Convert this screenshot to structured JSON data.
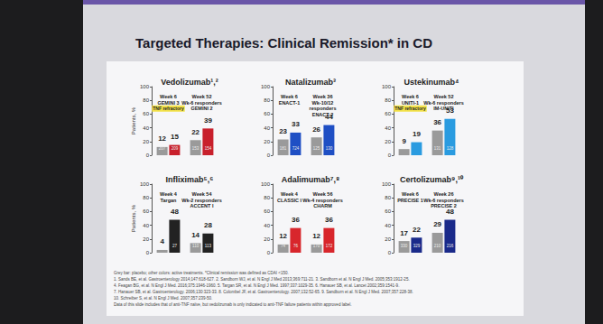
{
  "title": "Targeted Therapies: Clinical Remission* in CD",
  "footnote": [
    "Grey bar: placebo; other colors: active treatments. *Clinical remission was defined as CDAI <150.",
    "1. Sands BE, et al. Gastroenterology 2014;147:618-627. 2. Sandborn WJ, et al. N Engl J Med 2013;369:711-21. 3. Sandborn et al. N Engl J Med. 2005;353:1912-25.",
    "4. Feagan BG, et al. N Engl J Med. 2016;375:1946-1960. 5. Targan SR, et al. N Engl J Med. 1997;337:1029-35. 6. Hanauer SB, et al. Lancet 2002;359:1541-9.",
    "7. Hanauer SB, et al. Gastroenterology. 2006;130:323-33. 8. Colombel JF, et al. Gastroenterology. 2007;132:52-65. 9. Sandborn et al. N Engl J Med. 2007;357:228-38.",
    "10. Schreiber S, et al. N Engl J Med. 2007;357:239-50.",
    "Data of this slide includes that of anti-TNF naïve, but vedolizumab is only indicated to anti-TNF failure patients within approved label."
  ],
  "chart_data": [
    {
      "type": "bar",
      "title": "Vedolizumab¹,²",
      "y_label": "Patients, %",
      "categories": [
        "Week 6\nGEMINI 3",
        "Week 52\nWk-6 responders\nGEMINI 2"
      ],
      "annotations": [
        {
          "text": "TNF refractory",
          "category": "Week 6\nGEMINI 3"
        }
      ],
      "series": [
        {
          "color": "#9a9a9a",
          "values": [
            12,
            22
          ],
          "n": [
            207,
            153
          ]
        },
        {
          "color": "#c8202c",
          "values": [
            15,
            39
          ],
          "n": [
            209,
            154
          ]
        }
      ],
      "ylim": [
        0,
        100
      ],
      "yticks": [
        0,
        20,
        40,
        60,
        80,
        100
      ],
      "grid": false,
      "data_labels": true
    },
    {
      "type": "bar",
      "title": "Natalizumab³",
      "categories": [
        "Week 6\nENACT-1",
        "Week 36\nWk-10/12\nresponders\nENACT-2"
      ],
      "series": [
        {
          "color": "#9a9a9a",
          "values": [
            23,
            26
          ],
          "n": [
            181,
            125
          ]
        },
        {
          "color": "#1f4fc4",
          "values": [
            33,
            44
          ],
          "n": [
            724,
            130
          ]
        }
      ],
      "ylim": [
        0,
        100
      ],
      "yticks": [
        0,
        20,
        40,
        60,
        80,
        100
      ],
      "grid": false,
      "data_labels": true
    },
    {
      "type": "bar",
      "title": "Ustekinumab⁴",
      "categories": [
        "Week 6\nUNITI-1",
        "Week 52\nWk-6 responders\nIM-UNITI"
      ],
      "annotations": [
        {
          "text": "TNF refractory",
          "category": "Week 6\nUNITI-1"
        }
      ],
      "series": [
        {
          "color": "#9a9a9a",
          "values": [
            9,
            36
          ],
          "n": [
            null,
            131
          ]
        },
        {
          "color": "#2a9be0",
          "values": [
            19,
            53
          ],
          "n": [
            null,
            128
          ]
        }
      ],
      "ylim": [
        0,
        100
      ],
      "yticks": [
        0,
        20,
        40,
        60,
        80,
        100
      ],
      "grid": false,
      "data_labels": true
    },
    {
      "type": "bar",
      "title": "Infliximab⁵,⁶",
      "y_label": "Patients, %",
      "categories": [
        "Week 4\nTargan",
        "Week 54\nWk-2 responders\nACCENT I"
      ],
      "series": [
        {
          "color": "#9a9a9a",
          "values": [
            4,
            14
          ],
          "n": [
            null,
            110
          ]
        },
        {
          "color": "#222222",
          "values": [
            48,
            28
          ],
          "n": [
            27,
            113
          ]
        }
      ],
      "ylim": [
        0,
        100
      ],
      "yticks": [
        0,
        20,
        40,
        60,
        80,
        100
      ],
      "grid": false,
      "data_labels": true
    },
    {
      "type": "bar",
      "title": "Adalimumab⁷,⁸",
      "categories": [
        "Week 4\nCLASSIC I",
        "Week 56\nWk-4 responders\nCHARM"
      ],
      "series": [
        {
          "color": "#9a9a9a",
          "values": [
            12,
            12
          ],
          "n": [
            74,
            170
          ]
        },
        {
          "color": "#d8262c",
          "values": [
            36,
            36
          ],
          "n": [
            76,
            172
          ]
        }
      ],
      "ylim": [
        0,
        100
      ],
      "yticks": [
        0,
        20,
        40,
        60,
        80,
        100
      ],
      "grid": false,
      "data_labels": true
    },
    {
      "type": "bar",
      "title": "Certolizumab⁹,¹⁰",
      "categories": [
        "Week 6\nPRECISE 1",
        "Week 26\nWk-6 responders\nPRECISE 2"
      ],
      "series": [
        {
          "color": "#9a9a9a",
          "values": [
            17,
            29
          ],
          "n": [
            330,
            210
          ]
        },
        {
          "color": "#1a2a8a",
          "values": [
            22,
            48
          ],
          "n": [
            329,
            216
          ]
        }
      ],
      "ylim": [
        0,
        100
      ],
      "yticks": [
        0,
        20,
        40,
        60,
        80,
        100
      ],
      "grid": false,
      "data_labels": true
    }
  ]
}
